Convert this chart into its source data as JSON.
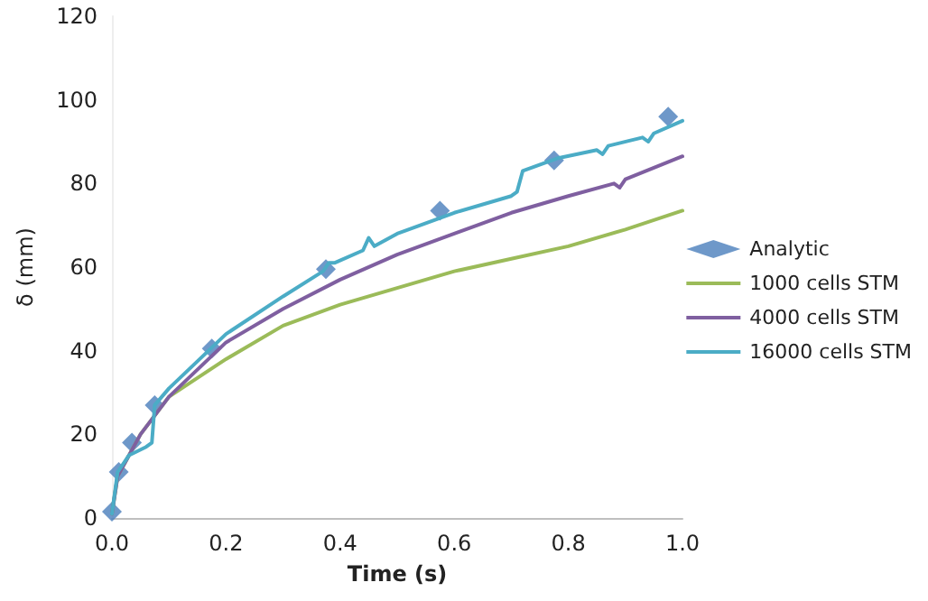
{
  "chart_data": {
    "type": "line",
    "xlabel": "Time (s)",
    "ylabel": "δ (mm)",
    "xlim": [
      0,
      1
    ],
    "xticks": [
      {
        "value": 0,
        "label": "0.0"
      },
      {
        "value": 0.2,
        "label": "0.2"
      },
      {
        "value": 0.4,
        "label": "0.4"
      },
      {
        "value": 0.6,
        "label": "0.6"
      },
      {
        "value": 0.8,
        "label": "0.8"
      },
      {
        "value": 1,
        "label": "1.0"
      }
    ],
    "ylim": [
      0,
      120
    ],
    "yticks": [
      0,
      20,
      40,
      60,
      80,
      100,
      120
    ],
    "grid": false,
    "legend": "right",
    "series": [
      {
        "name": "Analytic",
        "type": "scatter",
        "marker": "diamond",
        "color": "#4a7ebb",
        "x": [
          0,
          0.012,
          0.035,
          0.075,
          0.175,
          0.375,
          0.575,
          0.775,
          0.975
        ],
        "values": [
          1.5,
          11,
          18,
          27,
          40.5,
          59.5,
          73.5,
          85.5,
          96
        ]
      },
      {
        "name": "1000 cells STM",
        "type": "line",
        "marker": "none",
        "color": "#9bbb59",
        "x": [
          0,
          0.01,
          0.05,
          0.1,
          0.2,
          0.3,
          0.4,
          0.5,
          0.6,
          0.7,
          0.8,
          0.9,
          1
        ],
        "values": [
          1,
          10,
          20,
          29,
          38,
          46,
          51,
          55,
          59,
          62,
          65,
          69,
          73.5
        ]
      },
      {
        "name": "4000 cells STM",
        "type": "line",
        "marker": "none",
        "color": "#7f5fa0",
        "x": [
          0,
          0.01,
          0.05,
          0.1,
          0.2,
          0.3,
          0.4,
          0.5,
          0.6,
          0.7,
          0.8,
          0.88,
          0.89,
          0.9,
          1
        ],
        "values": [
          1,
          10,
          20,
          29,
          42,
          50,
          57,
          63,
          68,
          73,
          77,
          80,
          79,
          81,
          86.5
        ]
      },
      {
        "name": "16000 cells STM",
        "type": "line",
        "marker": "none",
        "color": "#4bacc6",
        "x": [
          0,
          0.01,
          0.03,
          0.06,
          0.07,
          0.075,
          0.1,
          0.2,
          0.3,
          0.37,
          0.38,
          0.39,
          0.44,
          0.45,
          0.46,
          0.5,
          0.6,
          0.7,
          0.71,
          0.72,
          0.78,
          0.85,
          0.86,
          0.87,
          0.93,
          0.94,
          0.95,
          1
        ],
        "values": [
          1,
          11,
          15,
          17,
          18,
          27,
          31,
          44,
          53,
          59,
          61,
          61,
          64,
          67,
          65,
          68,
          73,
          77,
          78,
          83,
          86,
          88,
          87,
          89,
          91,
          90,
          92,
          95
        ]
      }
    ]
  }
}
